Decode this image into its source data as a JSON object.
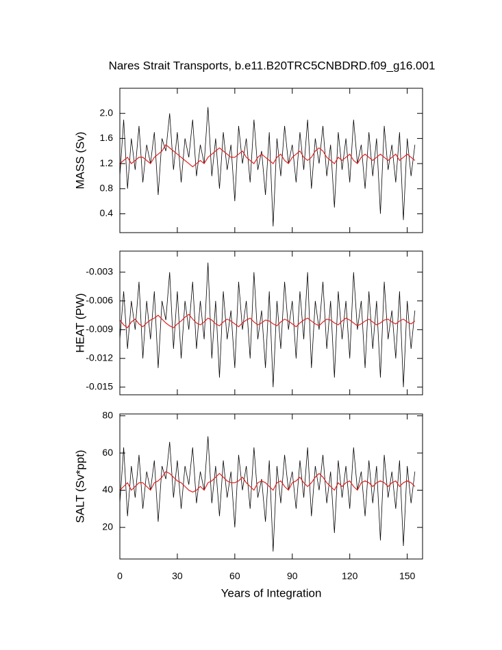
{
  "chart_data": [
    {
      "type": "line",
      "title": "Nares Strait Transports, b.e11.B20TRC5CNBDRD.f09_g16.001",
      "ylabel": "MASS (Sv)",
      "x": [
        0,
        2,
        4,
        6,
        8,
        10,
        12,
        14,
        16,
        18,
        20,
        22,
        24,
        26,
        28,
        30,
        32,
        34,
        36,
        38,
        40,
        42,
        44,
        46,
        48,
        50,
        52,
        54,
        56,
        58,
        60,
        62,
        64,
        66,
        68,
        70,
        72,
        74,
        76,
        78,
        80,
        82,
        84,
        86,
        88,
        90,
        92,
        94,
        96,
        98,
        100,
        102,
        104,
        106,
        108,
        110,
        112,
        114,
        116,
        118,
        120,
        122,
        124,
        126,
        128,
        130,
        132,
        134,
        136,
        138,
        140,
        142,
        144,
        146,
        148,
        150,
        152,
        154
      ],
      "xlim": [
        0,
        158
      ],
      "xticks": [
        0,
        30,
        60,
        90,
        120,
        150
      ],
      "ylim": [
        0.1,
        2.4
      ],
      "yticks": [
        0.4,
        0.8,
        1.2,
        1.6,
        {
          "value": 2,
          "label": "2.0"
        }
      ],
      "series": [
        {
          "color": "#000000",
          "values": [
            1.0,
            1.9,
            0.8,
            1.6,
            1.1,
            1.8,
            0.9,
            1.5,
            1.2,
            1.7,
            0.7,
            1.6,
            1.4,
            2.0,
            1.1,
            1.7,
            0.9,
            1.6,
            1.3,
            1.9,
            1.0,
            1.5,
            1.2,
            2.1,
            1.0,
            1.6,
            0.8,
            1.7,
            1.1,
            1.5,
            0.6,
            1.8,
            1.2,
            1.6,
            0.9,
            1.9,
            1.1,
            1.4,
            0.7,
            1.7,
            0.2,
            1.6,
            1.0,
            1.8,
            1.2,
            1.5,
            0.9,
            1.7,
            1.1,
            1.9,
            0.8,
            1.6,
            1.2,
            1.8,
            1.0,
            1.5,
            0.5,
            1.7,
            1.1,
            1.6,
            0.9,
            1.9,
            1.2,
            1.5,
            0.8,
            1.7,
            1.0,
            1.6,
            0.4,
            1.8,
            1.1,
            1.5,
            0.9,
            1.7,
            0.3,
            1.6,
            1.0,
            1.5
          ]
        },
        {
          "color": "#e02020",
          "values": [
            1.2,
            1.25,
            1.3,
            1.2,
            1.25,
            1.3,
            1.3,
            1.25,
            1.2,
            1.3,
            1.35,
            1.4,
            1.5,
            1.45,
            1.4,
            1.35,
            1.3,
            1.25,
            1.2,
            1.15,
            1.2,
            1.25,
            1.2,
            1.3,
            1.35,
            1.4,
            1.45,
            1.4,
            1.35,
            1.3,
            1.3,
            1.35,
            1.4,
            1.3,
            1.25,
            1.2,
            1.3,
            1.35,
            1.3,
            1.25,
            1.2,
            1.3,
            1.35,
            1.25,
            1.2,
            1.3,
            1.35,
            1.4,
            1.3,
            1.25,
            1.3,
            1.4,
            1.45,
            1.4,
            1.3,
            1.25,
            1.2,
            1.3,
            1.25,
            1.3,
            1.35,
            1.25,
            1.2,
            1.3,
            1.35,
            1.3,
            1.25,
            1.3,
            1.35,
            1.3,
            1.25,
            1.3,
            1.35,
            1.25,
            1.3,
            1.35,
            1.3,
            1.25
          ]
        }
      ]
    },
    {
      "type": "line",
      "ylabel": "HEAT (PW)",
      "x": [
        0,
        2,
        4,
        6,
        8,
        10,
        12,
        14,
        16,
        18,
        20,
        22,
        24,
        26,
        28,
        30,
        32,
        34,
        36,
        38,
        40,
        42,
        44,
        46,
        48,
        50,
        52,
        54,
        56,
        58,
        60,
        62,
        64,
        66,
        68,
        70,
        72,
        74,
        76,
        78,
        80,
        82,
        84,
        86,
        88,
        90,
        92,
        94,
        96,
        98,
        100,
        102,
        104,
        106,
        108,
        110,
        112,
        114,
        116,
        118,
        120,
        122,
        124,
        126,
        128,
        130,
        132,
        134,
        136,
        138,
        140,
        142,
        144,
        146,
        148,
        150,
        152,
        154
      ],
      "xlim": [
        0,
        158
      ],
      "xticks": [
        0,
        30,
        60,
        90,
        120,
        150
      ],
      "ylim": [
        -0.0158,
        -0.0008
      ],
      "yticks": [
        -0.015,
        -0.012,
        -0.009,
        -0.006,
        -0.003
      ],
      "series": [
        {
          "color": "#000000",
          "values": [
            -0.01,
            -0.005,
            -0.011,
            -0.006,
            -0.009,
            -0.004,
            -0.012,
            -0.006,
            -0.01,
            -0.005,
            -0.013,
            -0.006,
            -0.008,
            -0.003,
            -0.011,
            -0.005,
            -0.012,
            -0.006,
            -0.009,
            -0.004,
            -0.011,
            -0.006,
            -0.01,
            -0.002,
            -0.012,
            -0.006,
            -0.014,
            -0.005,
            -0.01,
            -0.007,
            -0.013,
            -0.004,
            -0.009,
            -0.006,
            -0.012,
            -0.003,
            -0.01,
            -0.007,
            -0.013,
            -0.005,
            -0.015,
            -0.006,
            -0.011,
            -0.004,
            -0.009,
            -0.006,
            -0.012,
            -0.005,
            -0.01,
            -0.003,
            -0.013,
            -0.006,
            -0.009,
            -0.004,
            -0.011,
            -0.006,
            -0.014,
            -0.005,
            -0.01,
            -0.006,
            -0.012,
            -0.003,
            -0.009,
            -0.006,
            -0.013,
            -0.005,
            -0.011,
            -0.006,
            -0.014,
            -0.004,
            -0.01,
            -0.007,
            -0.012,
            -0.005,
            -0.015,
            -0.006,
            -0.011,
            -0.007
          ]
        },
        {
          "color": "#e02020",
          "values": [
            -0.008,
            -0.0085,
            -0.0088,
            -0.0082,
            -0.0079,
            -0.0084,
            -0.0087,
            -0.0083,
            -0.008,
            -0.0078,
            -0.0075,
            -0.0079,
            -0.0083,
            -0.0086,
            -0.0088,
            -0.0084,
            -0.0081,
            -0.0077,
            -0.0074,
            -0.0079,
            -0.0083,
            -0.0085,
            -0.0082,
            -0.0078,
            -0.008,
            -0.0084,
            -0.0086,
            -0.0082,
            -0.0079,
            -0.0081,
            -0.0084,
            -0.0087,
            -0.0083,
            -0.008,
            -0.0078,
            -0.0082,
            -0.0085,
            -0.0083,
            -0.008,
            -0.0081,
            -0.0084,
            -0.0086,
            -0.0082,
            -0.0079,
            -0.0081,
            -0.0084,
            -0.0087,
            -0.0083,
            -0.008,
            -0.0078,
            -0.0081,
            -0.0084,
            -0.0086,
            -0.0082,
            -0.0079,
            -0.008,
            -0.0083,
            -0.0085,
            -0.0081,
            -0.0078,
            -0.008,
            -0.0083,
            -0.0086,
            -0.0084,
            -0.0081,
            -0.0079,
            -0.0082,
            -0.0085,
            -0.0083,
            -0.008,
            -0.0079,
            -0.0082,
            -0.0084,
            -0.0081,
            -0.0079,
            -0.0082,
            -0.0084,
            -0.0081
          ]
        }
      ]
    },
    {
      "type": "line",
      "ylabel": "SALT (Sv*ppt)",
      "xlabel": "Years of Integration",
      "x": [
        0,
        2,
        4,
        6,
        8,
        10,
        12,
        14,
        16,
        18,
        20,
        22,
        24,
        26,
        28,
        30,
        32,
        34,
        36,
        38,
        40,
        42,
        44,
        46,
        48,
        50,
        52,
        54,
        56,
        58,
        60,
        62,
        64,
        66,
        68,
        70,
        72,
        74,
        76,
        78,
        80,
        82,
        84,
        86,
        88,
        90,
        92,
        94,
        96,
        98,
        100,
        102,
        104,
        106,
        108,
        110,
        112,
        114,
        116,
        118,
        120,
        122,
        124,
        126,
        128,
        130,
        132,
        134,
        136,
        138,
        140,
        142,
        144,
        146,
        148,
        150,
        152,
        154
      ],
      "xlim": [
        0,
        158
      ],
      "xticks": [
        0,
        30,
        60,
        90,
        120,
        150
      ],
      "ylim": [
        3,
        81
      ],
      "yticks": [
        20,
        40,
        60,
        80
      ],
      "series": [
        {
          "color": "#000000",
          "values": [
            33,
            63,
            26,
            53,
            36,
            59,
            30,
            50,
            40,
            56,
            23,
            53,
            46,
            66,
            36,
            56,
            30,
            53,
            43,
            63,
            33,
            50,
            40,
            69,
            33,
            53,
            26,
            56,
            36,
            50,
            20,
            59,
            40,
            53,
            30,
            63,
            36,
            46,
            23,
            56,
            7,
            53,
            33,
            59,
            40,
            50,
            30,
            56,
            36,
            63,
            26,
            53,
            40,
            59,
            33,
            50,
            17,
            56,
            36,
            53,
            30,
            63,
            40,
            50,
            26,
            56,
            33,
            53,
            13,
            59,
            36,
            50,
            30,
            56,
            10,
            53,
            33,
            50
          ]
        },
        {
          "color": "#e02020",
          "values": [
            40,
            42,
            44,
            40,
            42,
            44,
            44,
            42,
            40,
            44,
            45,
            47,
            50,
            49,
            47,
            45,
            44,
            42,
            40,
            39,
            40,
            42,
            40,
            44,
            45,
            47,
            49,
            47,
            45,
            44,
            44,
            45,
            47,
            44,
            42,
            40,
            44,
            45,
            44,
            42,
            40,
            44,
            45,
            42,
            40,
            44,
            45,
            47,
            44,
            42,
            44,
            47,
            49,
            47,
            44,
            42,
            40,
            44,
            42,
            44,
            45,
            42,
            40,
            44,
            45,
            44,
            42,
            44,
            45,
            44,
            42,
            44,
            45,
            42,
            44,
            45,
            44,
            42
          ]
        }
      ]
    }
  ]
}
